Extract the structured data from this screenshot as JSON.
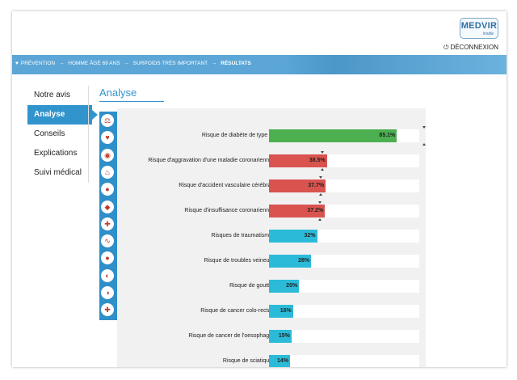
{
  "header": {
    "logo_text": "MEDVIR",
    "logo_sub": "inside",
    "logout_label": "DÉCONNEXION"
  },
  "breadcrumb": {
    "items": [
      {
        "label": "PRÉVENTION"
      },
      {
        "label": "HOMME ÂGÉ 69 ANS"
      },
      {
        "label": "SURPOIDS TRÈS IMPORTANT"
      },
      {
        "label": "RÉSULTATS"
      }
    ],
    "separator": "→"
  },
  "sidebar": {
    "items": [
      {
        "label": "Notre avis",
        "active": false
      },
      {
        "label": "Analyse",
        "active": true
      },
      {
        "label": "Conseils",
        "active": false
      },
      {
        "label": "Explications",
        "active": false
      },
      {
        "label": "Suivi médical",
        "active": false
      }
    ]
  },
  "main": {
    "title": "Analyse"
  },
  "colors": {
    "accent": "#3194cd",
    "green": "#4caf50",
    "red": "#d9534f",
    "cyan": "#2bbbd8"
  },
  "icons": [
    "scale-icon",
    "heart-monitor-icon",
    "brain-icon",
    "lungs-icon",
    "burger-icon",
    "foot-icon",
    "accident-icon",
    "veins-icon",
    "gout-icon",
    "colon-icon",
    "esophagus-icon",
    "spine-icon"
  ],
  "chart_data": {
    "type": "bar",
    "orientation": "horizontal",
    "categories": [
      "Risque de diabète de type 2",
      "Risque d'aggravation d'une maladie coronarienne",
      "Risque d'accident vasculaire cérébral",
      "Risque d'insuffisance coronarienne",
      "Risques de traumatisme",
      "Risque de troubles veineux",
      "Risque de goutte",
      "Risque de cancer colo-rectal",
      "Risque de cancer de l'oesophage",
      "Risque de sciatique"
    ],
    "values": [
      85.1,
      38.5,
      37.7,
      37.2,
      32,
      28,
      20,
      16,
      15,
      14
    ],
    "value_labels": [
      "85.1%",
      "38.5%",
      "37.7%",
      "37.2%",
      "32%",
      "28%",
      "20%",
      "16%",
      "15%",
      "14%"
    ],
    "bar_colors": [
      "#4caf50",
      "#d9534f",
      "#d9534f",
      "#d9534f",
      "#2bbbd8",
      "#2bbbd8",
      "#2bbbd8",
      "#2bbbd8",
      "#2bbbd8",
      "#2bbbd8"
    ],
    "xlim": [
      0,
      100
    ],
    "title": "",
    "xlabel": "",
    "ylabel": ""
  }
}
